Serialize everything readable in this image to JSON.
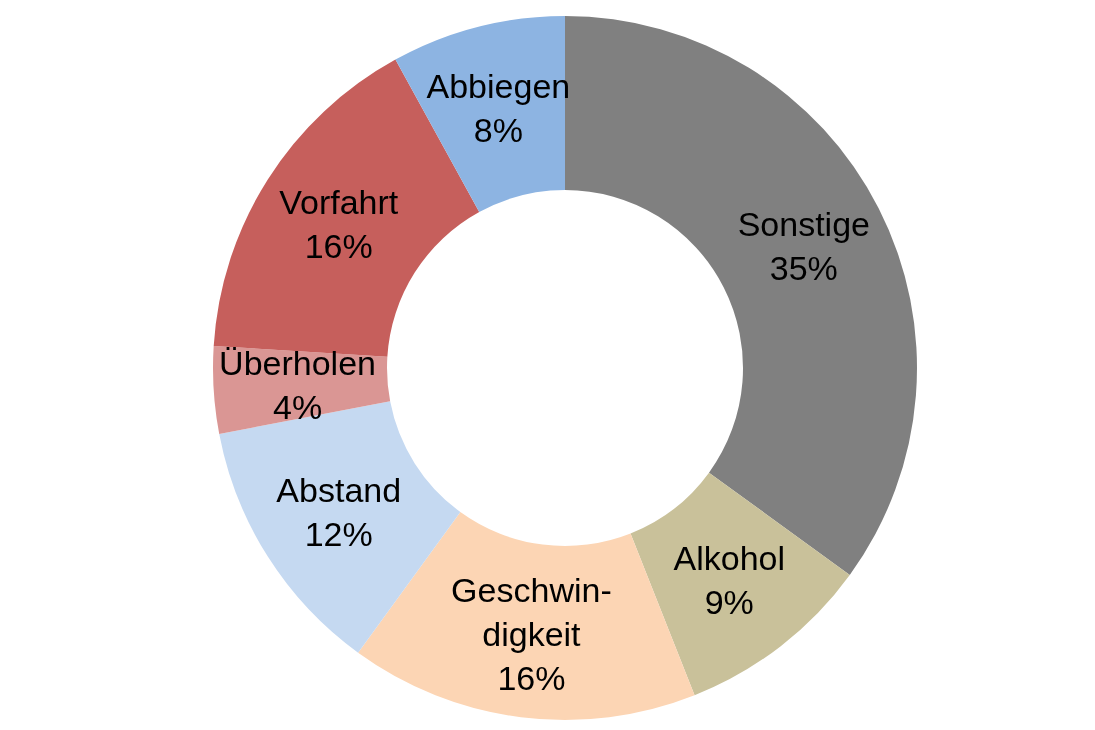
{
  "chart_data": {
    "type": "donut",
    "categories": [
      "Sonstige",
      "Alkohol",
      "Geschwin-\ndigkeit",
      "Abstand",
      "Überholen",
      "Vorfahrt",
      "Abbiegen"
    ],
    "values": [
      35,
      9,
      16,
      12,
      4,
      16,
      8
    ],
    "value_labels": [
      "35%",
      "9%",
      "16%",
      "12%",
      "4%",
      "16%",
      "8%"
    ],
    "colors": [
      "#808080",
      "#c9c19a",
      "#fcd5b4",
      "#c5d9f1",
      "#da9694",
      "#c65f5c",
      "#8db4e2"
    ],
    "legend": false
  }
}
